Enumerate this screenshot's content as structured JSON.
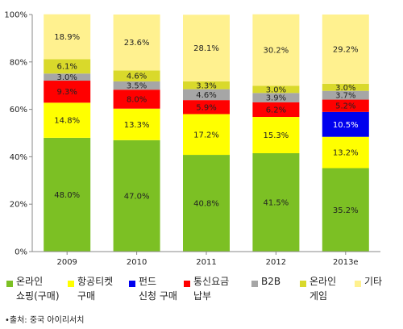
{
  "chart_data": {
    "type": "bar",
    "stacked": true,
    "percent": true,
    "categories": [
      "2009",
      "2010",
      "2011",
      "2012",
      "2013e"
    ],
    "y_ticks": [
      "0%",
      "20%",
      "40%",
      "60%",
      "80%",
      "100%"
    ],
    "ylim": [
      0,
      100
    ],
    "grid": false,
    "legend_position": "bottom",
    "series": [
      {
        "name": "온라인\n쇼핑(구매)",
        "color": "#7cc024",
        "values": [
          48.0,
          47.0,
          40.8,
          41.5,
          35.2
        ],
        "labels": [
          "48.0%",
          "47.0%",
          "40.8%",
          "41.5%",
          "35.2%"
        ]
      },
      {
        "name": "항공티켓\n구매",
        "color": "#ffff00",
        "values": [
          14.8,
          13.3,
          17.2,
          15.3,
          13.2
        ],
        "labels": [
          "14.8%",
          "13.3%",
          "17.2%",
          "15.3%",
          "13.2%"
        ]
      },
      {
        "name": "펀드\n신청 구매",
        "color": "#0000ee",
        "values": [
          0,
          0,
          0,
          0,
          10.5
        ],
        "labels": [
          "",
          "",
          "",
          "",
          "10.5%"
        ]
      },
      {
        "name": "통신요금\n납부",
        "color": "#ff0000",
        "values": [
          9.3,
          8.0,
          5.9,
          6.2,
          5.2
        ],
        "labels": [
          "9.3%",
          "8.0%",
          "5.9%",
          "6.2%",
          "5.2%"
        ]
      },
      {
        "name": "B2B",
        "color": "#a6a6a6",
        "values": [
          3.0,
          3.5,
          4.6,
          3.9,
          3.7
        ],
        "labels": [
          "3.0%",
          "3.5%",
          "4.6%",
          "3.9%",
          "3.7%"
        ]
      },
      {
        "name": "온라인\n게임",
        "color": "#d9d92b",
        "values": [
          6.1,
          4.6,
          3.3,
          3.0,
          3.0
        ],
        "labels": [
          "6.1%",
          "4.6%",
          "3.3%",
          "3.0%",
          "3.0%"
        ]
      },
      {
        "name": "기타",
        "color": "#fff18f",
        "values": [
          18.9,
          23.6,
          28.1,
          30.2,
          29.2
        ],
        "labels": [
          "18.9%",
          "23.6%",
          "28.1%",
          "30.2%",
          "29.2%"
        ]
      }
    ]
  },
  "source": "•출처: 중국 아이리서치"
}
